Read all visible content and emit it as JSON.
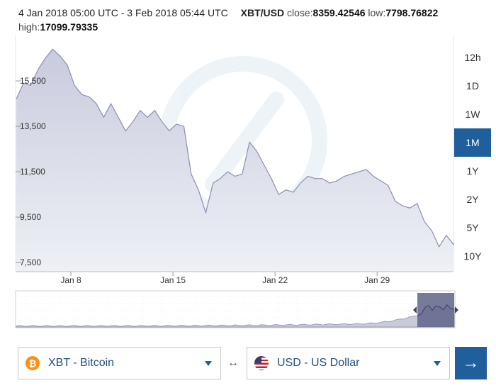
{
  "header": {
    "range_label": "4 Jan 2018 05:00 UTC - 3 Feb 2018 05:44 UTC",
    "symbol": "XBT/USD",
    "close_label": "close:",
    "close_value": "8359.42546",
    "low_label": "low:",
    "low_value": "7798.76822",
    "high_label": "high:",
    "high_value": "17099.79335"
  },
  "range_buttons": [
    {
      "label": "12h",
      "active": false
    },
    {
      "label": "1D",
      "active": false
    },
    {
      "label": "1W",
      "active": false
    },
    {
      "label": "1M",
      "active": true
    },
    {
      "label": "1Y",
      "active": false
    },
    {
      "label": "2Y",
      "active": false
    },
    {
      "label": "5Y",
      "active": false
    },
    {
      "label": "10Y",
      "active": false
    }
  ],
  "converter": {
    "from": {
      "label": "XBT - Bitcoin",
      "icon": "bitcoin-icon",
      "color": "#f7931a"
    },
    "to": {
      "label": "USD - US Dollar",
      "icon": "us-flag-icon"
    },
    "swap_icon": "↔",
    "go_icon": "→"
  },
  "colors": {
    "accent": "#1f5f9b",
    "line": "#8a8fb0",
    "area": "#d8dae8",
    "nav_selected": "#5f6488"
  },
  "chart_data": {
    "type": "area",
    "title": "",
    "xlabel": "",
    "ylabel": "",
    "ylim": [
      7100,
      17500
    ],
    "y_ticks": [
      7500,
      9500,
      11500,
      13500,
      15500
    ],
    "y_tick_labels": [
      "7,500",
      "9,500",
      "11,500",
      "13,500",
      "15,500"
    ],
    "x_range": [
      "2018-01-04",
      "2018-02-03"
    ],
    "x_ticks": [
      "2018-01-08",
      "2018-01-15",
      "2018-01-22",
      "2018-01-29"
    ],
    "x_tick_labels": [
      "Jan 8",
      "Jan 15",
      "Jan 22",
      "Jan 29"
    ],
    "grid": false,
    "series": [
      {
        "points": [
          [
            "2018-01-04",
            14700
          ],
          [
            "2018-01-04",
            15400
          ],
          [
            "2018-01-05",
            15300
          ],
          [
            "2018-01-05",
            16000
          ],
          [
            "2018-01-06",
            16500
          ],
          [
            "2018-01-06",
            16900
          ],
          [
            "2018-01-07",
            16600
          ],
          [
            "2018-01-07",
            16200
          ],
          [
            "2018-01-08",
            15300
          ],
          [
            "2018-01-08",
            14900
          ],
          [
            "2018-01-09",
            14800
          ],
          [
            "2018-01-09",
            14500
          ],
          [
            "2018-01-10",
            13900
          ],
          [
            "2018-01-10",
            14500
          ],
          [
            "2018-01-11",
            13900
          ],
          [
            "2018-01-11",
            13300
          ],
          [
            "2018-01-12",
            13700
          ],
          [
            "2018-01-12",
            14200
          ],
          [
            "2018-01-13",
            13900
          ],
          [
            "2018-01-13",
            14200
          ],
          [
            "2018-01-14",
            13700
          ],
          [
            "2018-01-14",
            13300
          ],
          [
            "2018-01-15",
            13600
          ],
          [
            "2018-01-15",
            13500
          ],
          [
            "2018-01-16",
            11400
          ],
          [
            "2018-01-16",
            10700
          ],
          [
            "2018-01-17",
            9700
          ],
          [
            "2018-01-17",
            11000
          ],
          [
            "2018-01-18",
            11200
          ],
          [
            "2018-01-18",
            11500
          ],
          [
            "2018-01-19",
            11300
          ],
          [
            "2018-01-19",
            11400
          ],
          [
            "2018-01-20",
            12800
          ],
          [
            "2018-01-20",
            12400
          ],
          [
            "2018-01-21",
            11800
          ],
          [
            "2018-01-21",
            11200
          ],
          [
            "2018-01-22",
            10500
          ],
          [
            "2018-01-22",
            10700
          ],
          [
            "2018-01-23",
            10600
          ],
          [
            "2018-01-23",
            11000
          ],
          [
            "2018-01-24",
            11300
          ],
          [
            "2018-01-24",
            11200
          ],
          [
            "2018-01-25",
            11200
          ],
          [
            "2018-01-25",
            11000
          ],
          [
            "2018-01-26",
            11100
          ],
          [
            "2018-01-26",
            11300
          ],
          [
            "2018-01-27",
            11400
          ],
          [
            "2018-01-27",
            11500
          ],
          [
            "2018-01-28",
            11600
          ],
          [
            "2018-01-28",
            11300
          ],
          [
            "2018-01-29",
            11100
          ],
          [
            "2018-01-29",
            10900
          ],
          [
            "2018-01-30",
            10200
          ],
          [
            "2018-01-30",
            10000
          ],
          [
            "2018-01-31",
            9900
          ],
          [
            "2018-01-31",
            10100
          ],
          [
            "2018-02-01",
            9300
          ],
          [
            "2018-02-01",
            8900
          ],
          [
            "2018-02-02",
            8200
          ],
          [
            "2018-02-02",
            8700
          ],
          [
            "2018-02-03",
            8300
          ],
          [
            "2018-02-03",
            8360
          ]
        ]
      }
    ]
  }
}
